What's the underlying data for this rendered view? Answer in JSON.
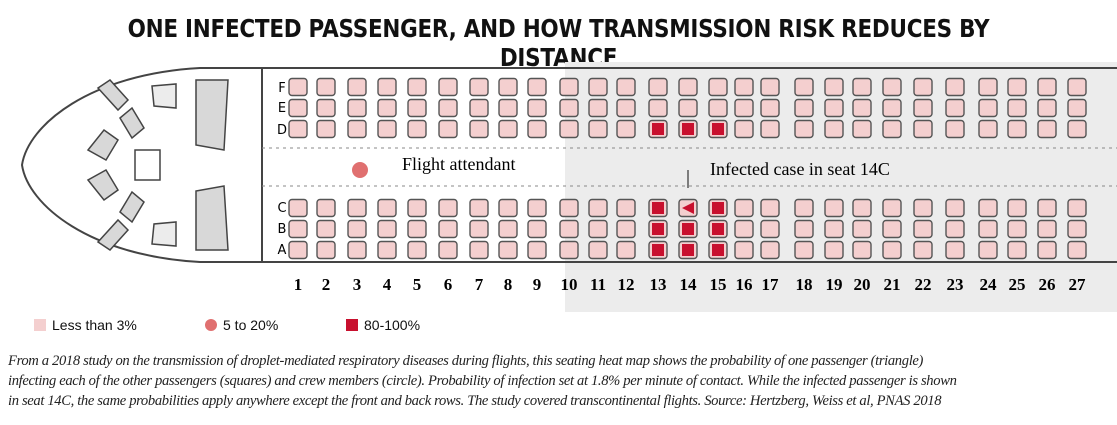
{
  "title": "ONE INFECTED PASSENGER, AND HOW TRANSMISSION RISK REDUCES BY DISTANCE",
  "rows_upper": [
    "F",
    "E",
    "D"
  ],
  "rows_lower": [
    "C",
    "B",
    "A"
  ],
  "seat_numbers": [
    "1",
    "2",
    "3",
    "4",
    "5",
    "6",
    "7",
    "8",
    "9",
    "10",
    "11",
    "12",
    "13",
    "14",
    "15",
    "16",
    "17",
    "18",
    "19",
    "20",
    "21",
    "22",
    "23",
    "24",
    "25",
    "26",
    "27"
  ],
  "annotations": {
    "flight_attendant": "Flight attendant",
    "infected_case": "Infected case in seat 14C"
  },
  "legend": [
    {
      "label": "Less than 3%",
      "shape": "square",
      "color": "#f4cfcf"
    },
    {
      "label": "5 to 20%",
      "shape": "circle",
      "color": "#e07070"
    },
    {
      "label": "80-100%",
      "shape": "square",
      "color": "#c8102e"
    }
  ],
  "colors": {
    "low": "#f4cfcf",
    "high": "#c8102e",
    "attendant": "#e07070",
    "infected": "#c8102e",
    "seat_stroke": "#555555"
  },
  "high_risk_seats": [
    "13D",
    "14D",
    "15D",
    "13C",
    "15C",
    "13B",
    "14B",
    "15B",
    "13A",
    "14A",
    "15A"
  ],
  "infected_seat": "14C",
  "caption_lines": [
    "From a 2018 study on the transmission of droplet-mediated respiratory diseases during flights, this seating heat map shows the probability of one passenger (triangle)",
    "infecting each of the other passengers (squares) and crew members (circle). Probability of infection set at 1.8% per minute of contact. While the infected passenger is shown",
    "in seat 14C, the same probabilities apply anywhere except the front and back rows. The study covered transcontinental flights. Source: Hertzberg, Weiss et al, PNAS 2018"
  ]
}
